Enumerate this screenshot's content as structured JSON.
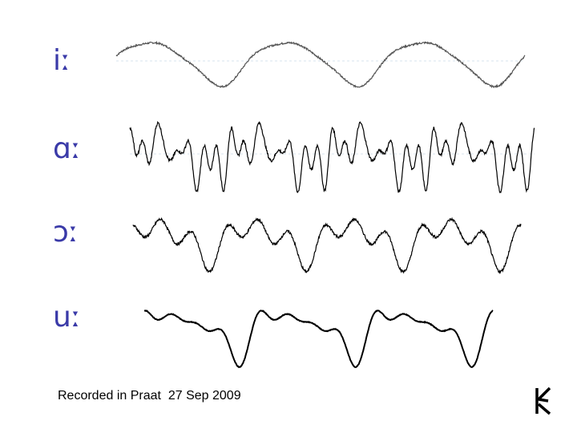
{
  "caption": "Recorded in Praat  27 Sep 2009",
  "logo_icon": "praat-logo-icon",
  "colors": {
    "label": "#3a3aa8",
    "wave": "#000000",
    "grid": "#d7e3ec"
  },
  "chart_data": [
    {
      "type": "line",
      "name": "iː",
      "x_range": [
        0,
        3
      ],
      "ylim": [
        -1,
        1
      ],
      "periods": 3,
      "grid": true,
      "harmonics": [
        [
          1,
          1.0,
          0.0
        ],
        [
          2,
          0.18,
          1.2
        ],
        [
          3,
          0.08,
          2.0
        ]
      ],
      "noise": 0.04,
      "series_color": "#555555"
    },
    {
      "type": "line",
      "name": "ɑː",
      "x_range": [
        0,
        4
      ],
      "ylim": [
        -1,
        1
      ],
      "periods": 4,
      "grid": true,
      "harmonics": [
        [
          1,
          0.45,
          0.0
        ],
        [
          4,
          0.55,
          0.6
        ],
        [
          7,
          0.5,
          1.4
        ],
        [
          8,
          0.3,
          2.2
        ]
      ],
      "noise": 0.06,
      "series_color": "#000000"
    },
    {
      "type": "line",
      "name": "ɔː",
      "x_range": [
        0,
        4
      ],
      "ylim": [
        -1,
        1
      ],
      "periods": 4,
      "grid": false,
      "harmonics": [
        [
          1,
          0.55,
          0.0
        ],
        [
          2,
          0.25,
          1.0
        ],
        [
          3,
          0.45,
          2.4
        ]
      ],
      "noise": 0.05,
      "series_color": "#000000"
    },
    {
      "type": "line",
      "name": "uː",
      "x_range": [
        0,
        3
      ],
      "ylim": [
        -1,
        1
      ],
      "periods": 3,
      "grid": false,
      "harmonics": [
        [
          1,
          0.6,
          0.0
        ],
        [
          2,
          0.35,
          0.8
        ],
        [
          3,
          0.3,
          1.8
        ],
        [
          4,
          0.18,
          2.6
        ]
      ],
      "noise": 0.01,
      "series_color": "#000000"
    }
  ]
}
